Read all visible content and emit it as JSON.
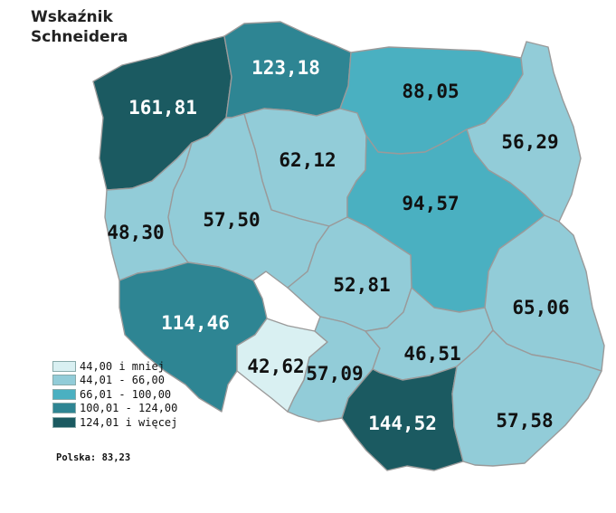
{
  "title": {
    "line1": "Wskaźnik",
    "line2": "Schneidera"
  },
  "colors": {
    "class1": "#d9f0f2",
    "class2": "#92ccd8",
    "class3": "#4ab0c1",
    "class4": "#2e8593",
    "class5": "#1b5a61",
    "border": "#9a9a9a",
    "label_dark": "#111111",
    "label_light": "#ffffff"
  },
  "legend": [
    {
      "label": "44,00 i mniej",
      "class": "class1"
    },
    {
      "label": "44,01 - 66,00",
      "class": "class2"
    },
    {
      "label": "66,01 - 100,00",
      "class": "class3"
    },
    {
      "label": "100,01 - 124,00",
      "class": "class4"
    },
    {
      "label": "124,01 i więcej",
      "class": "class5"
    }
  ],
  "national": "Polska: 83,23",
  "regions": [
    {
      "id": "zachodniopomorskie",
      "value": "161,81",
      "class": "class5"
    },
    {
      "id": "pomorskie",
      "value": "123,18",
      "class": "class4"
    },
    {
      "id": "warminsko-mazurskie",
      "value": "88,05",
      "class": "class3"
    },
    {
      "id": "podlaskie",
      "value": "56,29",
      "class": "class2"
    },
    {
      "id": "kujawsko-pomorskie",
      "value": "62,12",
      "class": "class2"
    },
    {
      "id": "mazowieckie",
      "value": "94,57",
      "class": "class3"
    },
    {
      "id": "lubuskie",
      "value": "48,30",
      "class": "class2"
    },
    {
      "id": "wielkopolskie",
      "value": "57,50",
      "class": "class2"
    },
    {
      "id": "lodzkie",
      "value": "52,81",
      "class": "class2"
    },
    {
      "id": "lubelskie",
      "value": "65,06",
      "class": "class2"
    },
    {
      "id": "dolnoslaskie",
      "value": "114,46",
      "class": "class4"
    },
    {
      "id": "opolskie",
      "value": "42,62",
      "class": "class1"
    },
    {
      "id": "slaskie",
      "value": "57,09",
      "class": "class2"
    },
    {
      "id": "swietokrzyskie",
      "value": "46,51",
      "class": "class2"
    },
    {
      "id": "malopolskie",
      "value": "144,52",
      "class": "class5"
    },
    {
      "id": "podkarpackie",
      "value": "57,58",
      "class": "class2"
    }
  ]
}
